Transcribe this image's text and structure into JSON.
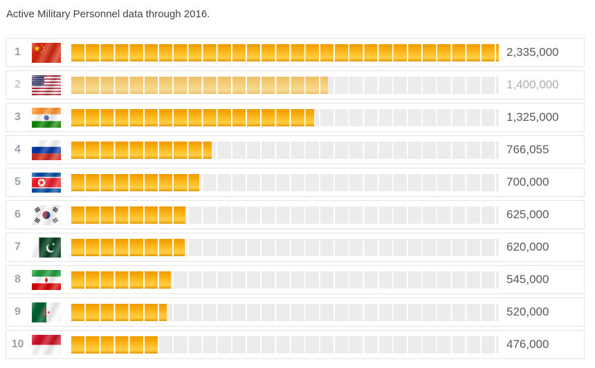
{
  "chart_data": {
    "type": "bar",
    "title": "Active Military Personnel data through 2016.",
    "orientation": "horizontal",
    "unit": "active military personnel",
    "x_axis": {
      "min": 0,
      "max": 2335000,
      "segment_unit": 80000,
      "gridlines": false
    },
    "max_value": 2335000,
    "rows": [
      {
        "rank": 1,
        "country": "China",
        "flag": "cn",
        "value": 2335000,
        "value_label": "2,335,000",
        "dimmed": false
      },
      {
        "rank": 2,
        "country": "United States",
        "flag": "us",
        "value": 1400000,
        "value_label": "1,400,000",
        "dimmed": true
      },
      {
        "rank": 3,
        "country": "India",
        "flag": "in",
        "value": 1325000,
        "value_label": "1,325,000",
        "dimmed": false
      },
      {
        "rank": 4,
        "country": "Russia",
        "flag": "ru",
        "value": 766055,
        "value_label": "766,055",
        "dimmed": false
      },
      {
        "rank": 5,
        "country": "North Korea",
        "flag": "kp",
        "value": 700000,
        "value_label": "700,000",
        "dimmed": false
      },
      {
        "rank": 6,
        "country": "South Korea",
        "flag": "kr",
        "value": 625000,
        "value_label": "625,000",
        "dimmed": false
      },
      {
        "rank": 7,
        "country": "Pakistan",
        "flag": "pk",
        "value": 620000,
        "value_label": "620,000",
        "dimmed": false
      },
      {
        "rank": 8,
        "country": "Iran",
        "flag": "ir",
        "value": 545000,
        "value_label": "545,000",
        "dimmed": false
      },
      {
        "rank": 9,
        "country": "Algeria",
        "flag": "dz",
        "value": 520000,
        "value_label": "520,000",
        "dimmed": false
      },
      {
        "rank": 10,
        "country": "Indonesia",
        "flag": "id",
        "value": 476000,
        "value_label": "476,000",
        "dimmed": false
      }
    ],
    "colors": {
      "bar_fill_top": "#ef9a01",
      "bar_fill_mid": "#ffc02a",
      "bar_fill_bottom": "#db9000",
      "bar_empty_segment": "#ececec",
      "segment_gap": "#ffffff",
      "row_border": "#e3e3e3",
      "rank_text": "#98a1aa",
      "value_text": "#57585a",
      "title_text": "#414141"
    }
  }
}
